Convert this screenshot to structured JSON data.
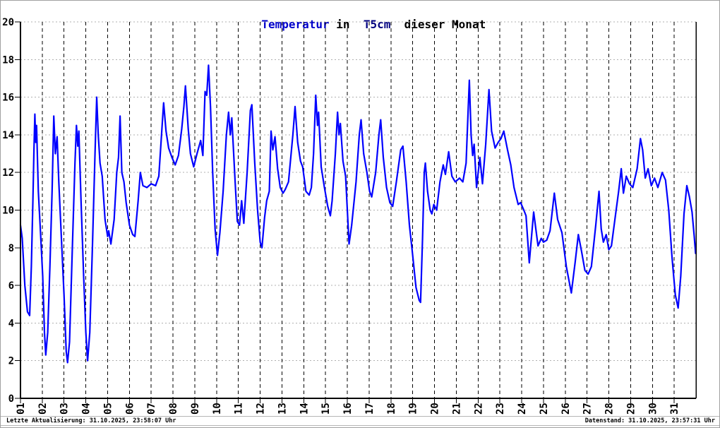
{
  "title": {
    "part1": "Temperatur",
    "part2": " in  ",
    "part3": "T5cm",
    "part4": "  dieser Monat"
  },
  "footer": {
    "left": "Letzte Aktualisierung: 31.10.2025, 23:58:07 Uhr",
    "right": "Datenstand: 31.10.2025, 23:57:31 Uhr"
  },
  "colors": {
    "title_blue": "#0000cc",
    "title_navy": "#000080",
    "line_blue": "#0000ff",
    "grid_gray": "#b0b0b0",
    "day_line_black": "#000000",
    "axis_black": "#000000"
  },
  "chart_data": {
    "type": "line",
    "title": "Temperatur in T5cm dieser Monat",
    "xlabel": "",
    "ylabel": "",
    "legend": "none",
    "grid": "horizontal dotted gray every 2 degrees; vertical dashed black per day",
    "ylim": [
      0,
      20
    ],
    "xlim": [
      1,
      32
    ],
    "y_ticks": [
      0,
      2,
      4,
      6,
      8,
      10,
      12,
      14,
      16,
      18,
      20
    ],
    "x_tick_labels": [
      "01",
      "02",
      "03",
      "04",
      "05",
      "06",
      "07",
      "08",
      "09",
      "10",
      "11",
      "12",
      "13",
      "14",
      "15",
      "16",
      "17",
      "18",
      "19",
      "20",
      "21",
      "22",
      "23",
      "24",
      "25",
      "26",
      "27",
      "28",
      "29",
      "30",
      "31"
    ],
    "series": [
      {
        "name": "T5cm",
        "color": "#0000ff",
        "points": [
          [
            1.0,
            9.2
          ],
          [
            1.08,
            8.5
          ],
          [
            1.2,
            6.0
          ],
          [
            1.32,
            4.6
          ],
          [
            1.42,
            4.4
          ],
          [
            1.5,
            7.0
          ],
          [
            1.57,
            10.5
          ],
          [
            1.62,
            13.2
          ],
          [
            1.66,
            15.1
          ],
          [
            1.7,
            13.6
          ],
          [
            1.74,
            14.5
          ],
          [
            1.82,
            11.0
          ],
          [
            1.92,
            8.8
          ],
          [
            2.02,
            6.5
          ],
          [
            2.1,
            3.5
          ],
          [
            2.16,
            2.3
          ],
          [
            2.25,
            3.5
          ],
          [
            2.35,
            7.0
          ],
          [
            2.45,
            11.0
          ],
          [
            2.53,
            15.0
          ],
          [
            2.6,
            13.0
          ],
          [
            2.68,
            13.9
          ],
          [
            2.76,
            11.5
          ],
          [
            2.88,
            8.5
          ],
          [
            3.0,
            5.5
          ],
          [
            3.1,
            2.5
          ],
          [
            3.16,
            1.9
          ],
          [
            3.25,
            3.0
          ],
          [
            3.38,
            8.0
          ],
          [
            3.5,
            12.5
          ],
          [
            3.57,
            14.5
          ],
          [
            3.63,
            13.4
          ],
          [
            3.68,
            14.2
          ],
          [
            3.78,
            10.5
          ],
          [
            3.9,
            6.5
          ],
          [
            4.0,
            3.5
          ],
          [
            4.08,
            2.0
          ],
          [
            4.18,
            3.5
          ],
          [
            4.3,
            8.0
          ],
          [
            4.42,
            13.0
          ],
          [
            4.5,
            16.0
          ],
          [
            4.57,
            14.0
          ],
          [
            4.65,
            12.5
          ],
          [
            4.75,
            11.8
          ],
          [
            4.88,
            9.5
          ],
          [
            5.0,
            8.6
          ],
          [
            5.05,
            8.9
          ],
          [
            5.15,
            8.2
          ],
          [
            5.3,
            9.5
          ],
          [
            5.42,
            12.0
          ],
          [
            5.5,
            12.8
          ],
          [
            5.57,
            15.0
          ],
          [
            5.65,
            12.0
          ],
          [
            5.75,
            11.5
          ],
          [
            5.85,
            10.4
          ],
          [
            6.0,
            9.2
          ],
          [
            6.15,
            8.7
          ],
          [
            6.25,
            8.6
          ],
          [
            6.4,
            10.5
          ],
          [
            6.5,
            12.0
          ],
          [
            6.62,
            11.3
          ],
          [
            6.8,
            11.2
          ],
          [
            7.0,
            11.4
          ],
          [
            7.2,
            11.3
          ],
          [
            7.35,
            11.8
          ],
          [
            7.5,
            14.5
          ],
          [
            7.57,
            15.7
          ],
          [
            7.68,
            14.2
          ],
          [
            7.8,
            13.3
          ],
          [
            7.95,
            12.8
          ],
          [
            8.1,
            12.4
          ],
          [
            8.25,
            12.9
          ],
          [
            8.4,
            14.3
          ],
          [
            8.5,
            15.5
          ],
          [
            8.57,
            16.6
          ],
          [
            8.7,
            14.3
          ],
          [
            8.8,
            13.0
          ],
          [
            8.95,
            12.3
          ],
          [
            9.1,
            13.0
          ],
          [
            9.27,
            13.7
          ],
          [
            9.37,
            12.9
          ],
          [
            9.47,
            16.3
          ],
          [
            9.55,
            16.1
          ],
          [
            9.63,
            17.7
          ],
          [
            9.72,
            15.5
          ],
          [
            9.82,
            12.0
          ],
          [
            9.93,
            9.0
          ],
          [
            10.04,
            7.6
          ],
          [
            10.15,
            8.8
          ],
          [
            10.3,
            11.0
          ],
          [
            10.45,
            14.0
          ],
          [
            10.55,
            15.2
          ],
          [
            10.63,
            14.0
          ],
          [
            10.7,
            14.9
          ],
          [
            10.85,
            11.5
          ],
          [
            10.95,
            9.4
          ],
          [
            11.05,
            9.2
          ],
          [
            11.15,
            10.5
          ],
          [
            11.25,
            9.3
          ],
          [
            11.4,
            12.0
          ],
          [
            11.55,
            15.3
          ],
          [
            11.62,
            15.6
          ],
          [
            11.75,
            12.5
          ],
          [
            11.88,
            10.0
          ],
          [
            12.0,
            8.3
          ],
          [
            12.08,
            8.0
          ],
          [
            12.2,
            9.6
          ],
          [
            12.3,
            10.5
          ],
          [
            12.42,
            11.0
          ],
          [
            12.5,
            14.2
          ],
          [
            12.58,
            13.2
          ],
          [
            12.68,
            13.9
          ],
          [
            12.8,
            12.2
          ],
          [
            12.92,
            11.2
          ],
          [
            13.05,
            10.9
          ],
          [
            13.15,
            11.1
          ],
          [
            13.3,
            11.5
          ],
          [
            13.5,
            14.0
          ],
          [
            13.6,
            15.5
          ],
          [
            13.72,
            13.6
          ],
          [
            13.85,
            12.6
          ],
          [
            13.95,
            12.3
          ],
          [
            14.1,
            11.0
          ],
          [
            14.25,
            10.8
          ],
          [
            14.35,
            11.2
          ],
          [
            14.45,
            13.0
          ],
          [
            14.55,
            16.1
          ],
          [
            14.63,
            14.5
          ],
          [
            14.68,
            15.2
          ],
          [
            14.8,
            12.3
          ],
          [
            14.95,
            11.2
          ],
          [
            15.1,
            10.2
          ],
          [
            15.22,
            9.7
          ],
          [
            15.3,
            10.5
          ],
          [
            15.45,
            13.0
          ],
          [
            15.55,
            15.2
          ],
          [
            15.62,
            14.0
          ],
          [
            15.68,
            14.6
          ],
          [
            15.8,
            12.6
          ],
          [
            15.92,
            11.8
          ],
          [
            16.08,
            8.2
          ],
          [
            16.2,
            9.2
          ],
          [
            16.4,
            11.5
          ],
          [
            16.55,
            14.0
          ],
          [
            16.63,
            14.8
          ],
          [
            16.75,
            13.0
          ],
          [
            16.9,
            12.0
          ],
          [
            17.02,
            11.0
          ],
          [
            17.12,
            10.7
          ],
          [
            17.3,
            12.0
          ],
          [
            17.45,
            14.0
          ],
          [
            17.53,
            14.8
          ],
          [
            17.65,
            12.8
          ],
          [
            17.8,
            11.2
          ],
          [
            17.95,
            10.4
          ],
          [
            18.08,
            10.2
          ],
          [
            18.25,
            11.5
          ],
          [
            18.45,
            13.2
          ],
          [
            18.55,
            13.4
          ],
          [
            18.7,
            11.5
          ],
          [
            18.85,
            9.2
          ],
          [
            18.97,
            7.9
          ],
          [
            19.15,
            5.9
          ],
          [
            19.3,
            5.2
          ],
          [
            19.36,
            5.1
          ],
          [
            19.45,
            8.5
          ],
          [
            19.53,
            12.0
          ],
          [
            19.58,
            12.5
          ],
          [
            19.68,
            11.0
          ],
          [
            19.8,
            10.0
          ],
          [
            19.88,
            9.8
          ],
          [
            19.97,
            10.3
          ],
          [
            20.1,
            10.0
          ],
          [
            20.25,
            11.5
          ],
          [
            20.4,
            12.4
          ],
          [
            20.5,
            11.9
          ],
          [
            20.65,
            13.1
          ],
          [
            20.8,
            11.8
          ],
          [
            20.95,
            11.5
          ],
          [
            21.15,
            11.7
          ],
          [
            21.3,
            11.5
          ],
          [
            21.45,
            12.5
          ],
          [
            21.55,
            15.5
          ],
          [
            21.6,
            16.9
          ],
          [
            21.68,
            14.0
          ],
          [
            21.75,
            12.9
          ],
          [
            21.82,
            13.5
          ],
          [
            21.93,
            11.2
          ],
          [
            22.08,
            12.8
          ],
          [
            22.2,
            11.4
          ],
          [
            22.35,
            13.5
          ],
          [
            22.5,
            16.4
          ],
          [
            22.62,
            14.2
          ],
          [
            22.78,
            13.3
          ],
          [
            22.92,
            13.6
          ],
          [
            23.05,
            13.8
          ],
          [
            23.18,
            14.2
          ],
          [
            23.35,
            13.2
          ],
          [
            23.5,
            12.4
          ],
          [
            23.65,
            11.2
          ],
          [
            23.84,
            10.3
          ],
          [
            23.95,
            10.4
          ],
          [
            24.1,
            10.0
          ],
          [
            24.2,
            9.7
          ],
          [
            24.35,
            7.2
          ],
          [
            24.55,
            9.9
          ],
          [
            24.75,
            8.1
          ],
          [
            24.9,
            8.5
          ],
          [
            25.0,
            8.3
          ],
          [
            25.15,
            8.4
          ],
          [
            25.3,
            8.9
          ],
          [
            25.5,
            10.9
          ],
          [
            25.65,
            9.5
          ],
          [
            25.85,
            8.8
          ],
          [
            26.05,
            7.0
          ],
          [
            26.28,
            5.6
          ],
          [
            26.45,
            7.2
          ],
          [
            26.6,
            8.7
          ],
          [
            26.75,
            7.8
          ],
          [
            26.9,
            6.8
          ],
          [
            27.05,
            6.6
          ],
          [
            27.2,
            7.0
          ],
          [
            27.4,
            9.2
          ],
          [
            27.55,
            11.0
          ],
          [
            27.65,
            9.0
          ],
          [
            27.75,
            8.3
          ],
          [
            27.88,
            8.7
          ],
          [
            28.0,
            7.9
          ],
          [
            28.12,
            8.1
          ],
          [
            28.3,
            9.7
          ],
          [
            28.45,
            11.0
          ],
          [
            28.57,
            12.2
          ],
          [
            28.67,
            10.9
          ],
          [
            28.8,
            11.8
          ],
          [
            28.95,
            11.4
          ],
          [
            29.1,
            11.2
          ],
          [
            29.3,
            12.2
          ],
          [
            29.45,
            13.8
          ],
          [
            29.55,
            13.2
          ],
          [
            29.67,
            11.7
          ],
          [
            29.8,
            12.2
          ],
          [
            29.95,
            11.3
          ],
          [
            30.1,
            11.7
          ],
          [
            30.25,
            11.2
          ],
          [
            30.45,
            12.0
          ],
          [
            30.6,
            11.6
          ],
          [
            30.75,
            10.0
          ],
          [
            30.9,
            7.5
          ],
          [
            31.05,
            5.5
          ],
          [
            31.18,
            4.8
          ],
          [
            31.3,
            6.5
          ],
          [
            31.45,
            9.8
          ],
          [
            31.58,
            11.3
          ],
          [
            31.7,
            10.7
          ],
          [
            31.82,
            9.9
          ],
          [
            31.92,
            8.6
          ],
          [
            31.98,
            7.7
          ]
        ]
      }
    ]
  }
}
